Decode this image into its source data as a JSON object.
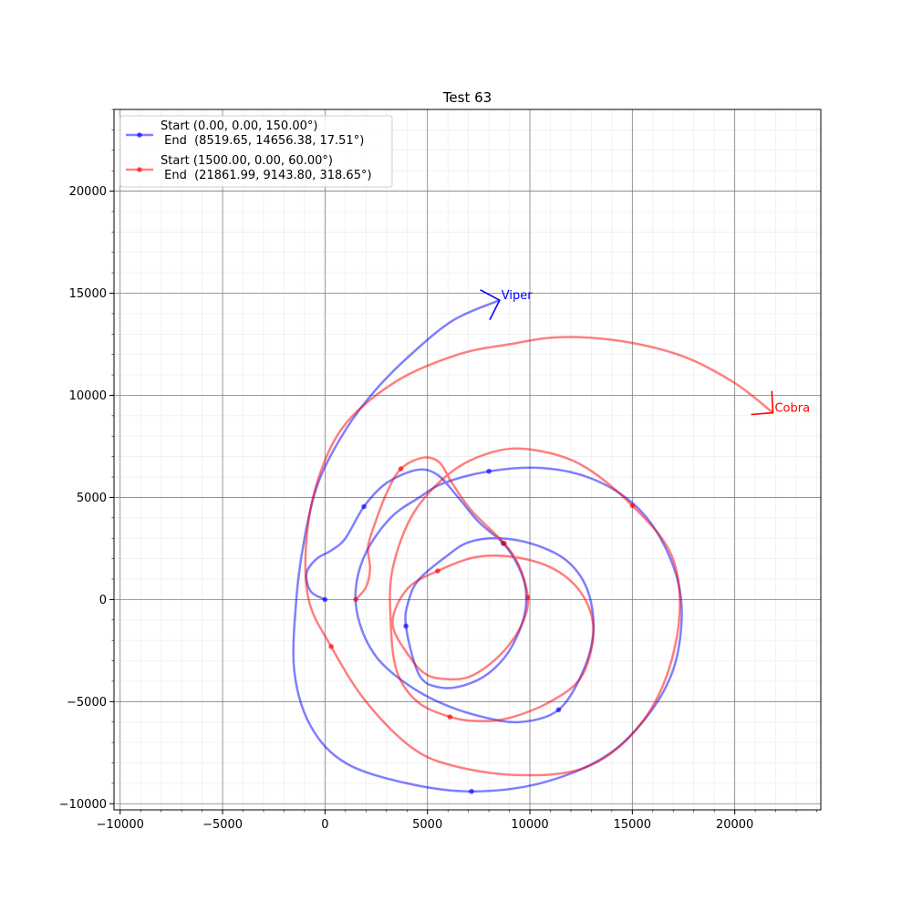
{
  "chart_data": {
    "type": "line",
    "title": "Test 63",
    "xlabel": "",
    "ylabel": "",
    "xlim": [
      -10300,
      24200
    ],
    "ylim": [
      -10300,
      24000
    ],
    "x_ticks": [
      -10000,
      -5000,
      0,
      5000,
      10000,
      15000,
      20000
    ],
    "y_ticks": [
      -10000,
      -5000,
      0,
      5000,
      10000,
      15000,
      20000
    ],
    "x_tick_labels": [
      "−10000",
      "−5000",
      "0",
      "5000",
      "10000",
      "15000",
      "20000"
    ],
    "y_tick_labels": [
      "−10000",
      "−5000",
      "0",
      "5000",
      "10000",
      "15000",
      "20000"
    ],
    "major_grid": true,
    "minor_grid": true,
    "minor_step": 1000,
    "legend_position": "top-left",
    "series": [
      {
        "legend_line1": "Start (0.00, 0.00, 150.00°)",
        "legend_line2": " End  (8519.65, 14656.38, 17.51°)",
        "end_label": "Viper",
        "color": "#0000ff",
        "start": [
          0,
          0,
          150.0
        ],
        "end": [
          8519.65,
          14656.38,
          17.51
        ],
        "markers": [
          [
            0,
            0
          ],
          [
            1900,
            4550
          ],
          [
            8000,
            6280
          ],
          [
            8700,
            2750
          ],
          [
            3950,
            -1300
          ],
          [
            11400,
            -5400
          ],
          [
            7150,
            -9400
          ]
        ],
        "points": [
          [
            0,
            0
          ],
          [
            -700,
            400
          ],
          [
            -900,
            1300
          ],
          [
            -400,
            2000
          ],
          [
            300,
            2400
          ],
          [
            1000,
            3000
          ],
          [
            1900,
            4550
          ],
          [
            3000,
            5700
          ],
          [
            4500,
            6350
          ],
          [
            5500,
            6100
          ],
          [
            6500,
            5000
          ],
          [
            7500,
            3800
          ],
          [
            8700,
            2750
          ],
          [
            9400,
            1700
          ],
          [
            9800,
            500
          ],
          [
            9700,
            -900
          ],
          [
            9000,
            -2500
          ],
          [
            8000,
            -3600
          ],
          [
            6800,
            -4200
          ],
          [
            5600,
            -4300
          ],
          [
            4600,
            -3700
          ],
          [
            3950,
            -1300
          ],
          [
            4100,
            0
          ],
          [
            4600,
            1000
          ],
          [
            5900,
            2100
          ],
          [
            7000,
            2800
          ],
          [
            8500,
            3000
          ],
          [
            10200,
            2700
          ],
          [
            11800,
            1900
          ],
          [
            12800,
            500
          ],
          [
            13100,
            -1500
          ],
          [
            12600,
            -3500
          ],
          [
            11400,
            -5400
          ],
          [
            9500,
            -6000
          ],
          [
            7500,
            -5700
          ],
          [
            5500,
            -5000
          ],
          [
            3800,
            -4000
          ],
          [
            2500,
            -2800
          ],
          [
            1700,
            -1200
          ],
          [
            1500,
            500
          ],
          [
            2000,
            2300
          ],
          [
            3200,
            4000
          ],
          [
            4600,
            5000
          ],
          [
            5800,
            5700
          ],
          [
            8000,
            6280
          ],
          [
            10500,
            6450
          ],
          [
            12800,
            6000
          ],
          [
            14800,
            4900
          ],
          [
            16200,
            3300
          ],
          [
            17200,
            1000
          ],
          [
            17400,
            -1200
          ],
          [
            16900,
            -3700
          ],
          [
            15500,
            -6000
          ],
          [
            13500,
            -7800
          ],
          [
            10500,
            -9000
          ],
          [
            7150,
            -9400
          ],
          [
            4000,
            -9000
          ],
          [
            1000,
            -8000
          ],
          [
            -700,
            -6200
          ],
          [
            -1500,
            -3500
          ],
          [
            -1400,
            0
          ],
          [
            -1000,
            3000
          ],
          [
            -300,
            5800
          ],
          [
            1000,
            8300
          ],
          [
            2500,
            10300
          ],
          [
            4300,
            12100
          ],
          [
            6300,
            13700
          ],
          [
            8519.65,
            14656.38
          ]
        ]
      },
      {
        "legend_line1": "Start (1500.00, 0.00, 60.00°)",
        "legend_line2": " End  (21861.99, 9143.80, 318.65°)",
        "end_label": "Cobra",
        "color": "#ff0000",
        "start": [
          1500,
          0,
          60.0
        ],
        "end": [
          21861.99,
          9143.8,
          318.65
        ],
        "markers": [
          [
            1500,
            0
          ],
          [
            3700,
            6400
          ],
          [
            8750,
            2750
          ],
          [
            5500,
            1400
          ],
          [
            9900,
            100
          ],
          [
            6100,
            -5750
          ],
          [
            15000,
            4600
          ],
          [
            300,
            -2300
          ]
        ],
        "points": [
          [
            1500,
            0
          ],
          [
            2000,
            600
          ],
          [
            2200,
            1500
          ],
          [
            2100,
            2600
          ],
          [
            2500,
            3900
          ],
          [
            3000,
            5200
          ],
          [
            3700,
            6400
          ],
          [
            4800,
            6950
          ],
          [
            5600,
            6700
          ],
          [
            6200,
            5700
          ],
          [
            7200,
            4300
          ],
          [
            8750,
            2750
          ],
          [
            9500,
            1600
          ],
          [
            9900,
            100
          ],
          [
            9700,
            -1000
          ],
          [
            9000,
            -2200
          ],
          [
            8000,
            -3200
          ],
          [
            7000,
            -3800
          ],
          [
            6000,
            -3900
          ],
          [
            5000,
            -3700
          ],
          [
            4200,
            -2900
          ],
          [
            3300,
            -1200
          ],
          [
            4000,
            500
          ],
          [
            5500,
            1400
          ],
          [
            7500,
            2100
          ],
          [
            9700,
            2000
          ],
          [
            11500,
            1300
          ],
          [
            12700,
            0
          ],
          [
            13100,
            -1700
          ],
          [
            12500,
            -3800
          ],
          [
            11000,
            -5000
          ],
          [
            9000,
            -5800
          ],
          [
            7500,
            -5950
          ],
          [
            6100,
            -5750
          ],
          [
            4500,
            -5000
          ],
          [
            3500,
            -3500
          ],
          [
            3200,
            -1000
          ],
          [
            3300,
            1500
          ],
          [
            4300,
            4200
          ],
          [
            6100,
            6200
          ],
          [
            8100,
            7200
          ],
          [
            10000,
            7350
          ],
          [
            12500,
            6600
          ],
          [
            15000,
            4600
          ],
          [
            16900,
            2200
          ],
          [
            17300,
            -800
          ],
          [
            16500,
            -4200
          ],
          [
            14800,
            -6800
          ],
          [
            12500,
            -8300
          ],
          [
            9500,
            -8600
          ],
          [
            6500,
            -8200
          ],
          [
            4300,
            -7300
          ],
          [
            2000,
            -5000
          ],
          [
            300,
            -2300
          ],
          [
            -800,
            0
          ],
          [
            -900,
            3000
          ],
          [
            -300,
            6000
          ],
          [
            1000,
            8600
          ],
          [
            3500,
            10700
          ],
          [
            6500,
            12000
          ],
          [
            9000,
            12500
          ],
          [
            11500,
            12850
          ],
          [
            14500,
            12650
          ],
          [
            17500,
            11900
          ],
          [
            20000,
            10600
          ],
          [
            21861.99,
            9143.8
          ]
        ]
      }
    ]
  }
}
